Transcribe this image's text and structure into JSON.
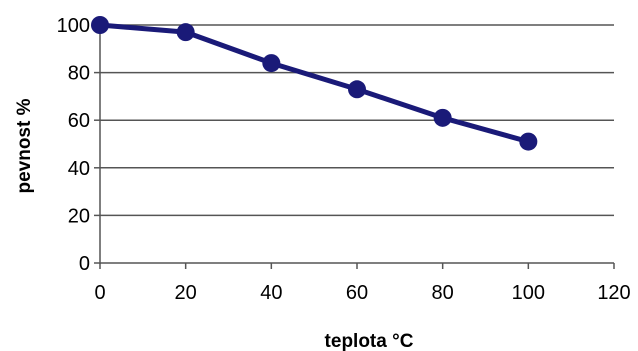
{
  "chart_data": {
    "type": "line",
    "x": [
      0,
      20,
      40,
      60,
      80,
      100
    ],
    "series": [
      {
        "values": [
          100,
          97,
          84,
          73,
          61,
          51
        ],
        "color": "#1a1a78"
      }
    ],
    "xlabel": "teplota °C",
    "ylabel": "pevnost  %",
    "xlim": [
      0,
      120
    ],
    "ylim": [
      0,
      100
    ],
    "xticks": [
      0,
      20,
      40,
      60,
      80,
      100,
      120
    ],
    "yticks": [
      0,
      20,
      40,
      60,
      80,
      100
    ],
    "grid": "horizontal",
    "legend": "none"
  }
}
